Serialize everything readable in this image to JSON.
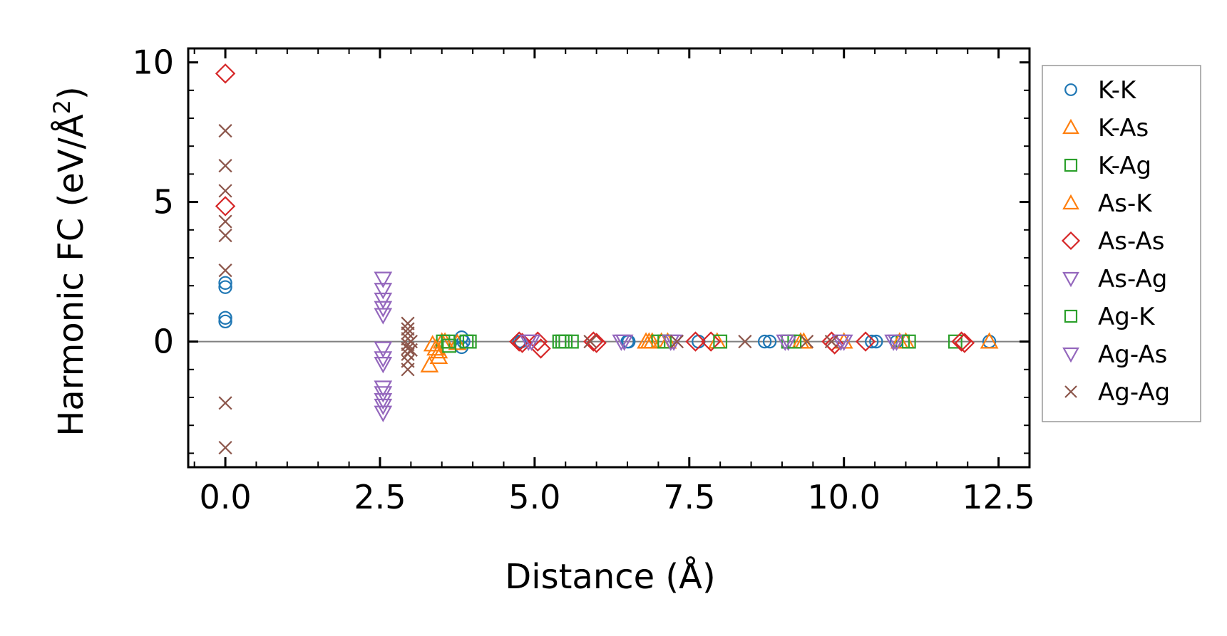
{
  "chart_data": {
    "type": "scatter",
    "title": "",
    "xlabel": "Distance (Å)",
    "ylabel_main": "Harmonic FC (eV/Å",
    "ylabel_sup": "2",
    "ylabel_close": ")",
    "xlim": [
      -0.6,
      13.0
    ],
    "ylim": [
      -4.5,
      10.5
    ],
    "xticks": [
      0.0,
      2.5,
      5.0,
      7.5,
      10.0,
      12.5
    ],
    "xtick_labels": [
      "0.0",
      "2.5",
      "5.0",
      "7.5",
      "10.0",
      "12.5"
    ],
    "yticks": [
      0,
      5,
      10
    ],
    "ytick_labels": [
      "0",
      "5",
      "10"
    ],
    "zero_line": true,
    "legend_position": "outside-right",
    "series": [
      {
        "name": "K-K",
        "marker": "circle",
        "color": "#1f77b4",
        "points": [
          [
            0.0,
            2.1
          ],
          [
            0.0,
            1.95
          ],
          [
            0.0,
            0.85
          ],
          [
            0.0,
            0.72
          ],
          [
            3.82,
            0.15
          ],
          [
            3.82,
            -0.2
          ],
          [
            3.85,
            0.0
          ],
          [
            4.75,
            0.0
          ],
          [
            4.78,
            0.0
          ],
          [
            6.5,
            0.0
          ],
          [
            6.52,
            0.0
          ],
          [
            7.65,
            0.0
          ],
          [
            8.72,
            0.0
          ],
          [
            8.8,
            0.0
          ],
          [
            10.45,
            0.0
          ],
          [
            10.52,
            0.0
          ],
          [
            10.85,
            0.0
          ],
          [
            12.35,
            0.0
          ]
        ]
      },
      {
        "name": "K-As",
        "marker": "triangle-up",
        "color": "#ff7f0e",
        "points": [
          [
            3.3,
            -0.85
          ],
          [
            3.35,
            -0.1
          ],
          [
            3.45,
            -0.55
          ],
          [
            3.45,
            -0.35
          ],
          [
            3.5,
            0.0
          ],
          [
            3.75,
            -0.05
          ],
          [
            6.85,
            0.0
          ],
          [
            6.9,
            0.0
          ],
          [
            7.15,
            0.0
          ],
          [
            9.35,
            0.0
          ],
          [
            11.0,
            0.0
          ],
          [
            12.35,
            0.0
          ]
        ]
      },
      {
        "name": "K-Ag",
        "marker": "square",
        "color": "#2ca02c",
        "points": [
          [
            3.52,
            0.0
          ],
          [
            3.95,
            0.0
          ],
          [
            5.45,
            0.0
          ],
          [
            5.5,
            0.0
          ],
          [
            7.0,
            0.0
          ],
          [
            9.1,
            0.0
          ],
          [
            10.95,
            0.0
          ],
          [
            11.8,
            0.0
          ]
        ]
      },
      {
        "name": "As-K",
        "marker": "triangle-up",
        "color": "#ff7f0e",
        "points": [
          [
            3.4,
            -0.25
          ],
          [
            3.55,
            0.0
          ],
          [
            6.8,
            0.0
          ],
          [
            7.05,
            0.0
          ],
          [
            7.95,
            0.0
          ],
          [
            9.3,
            0.0
          ],
          [
            10.0,
            0.0
          ],
          [
            10.9,
            0.0
          ]
        ]
      },
      {
        "name": "As-As",
        "marker": "diamond",
        "color": "#d62728",
        "points": [
          [
            0.0,
            9.6
          ],
          [
            0.0,
            4.85
          ],
          [
            4.75,
            0.0
          ],
          [
            4.8,
            -0.05
          ],
          [
            5.05,
            0.0
          ],
          [
            5.1,
            -0.25
          ],
          [
            5.95,
            0.0
          ],
          [
            6.0,
            -0.05
          ],
          [
            7.6,
            0.0
          ],
          [
            7.85,
            0.0
          ],
          [
            9.8,
            0.0
          ],
          [
            9.85,
            -0.1
          ],
          [
            10.35,
            0.0
          ],
          [
            11.9,
            0.0
          ],
          [
            11.95,
            -0.05
          ]
        ]
      },
      {
        "name": "As-Ag",
        "marker": "triangle-down",
        "color": "#9467bd",
        "points": [
          [
            2.55,
            2.25
          ],
          [
            2.55,
            1.85
          ],
          [
            2.55,
            1.5
          ],
          [
            2.55,
            1.2
          ],
          [
            2.55,
            0.95
          ],
          [
            2.55,
            -0.25
          ],
          [
            2.55,
            -0.6
          ],
          [
            2.55,
            -0.8
          ],
          [
            2.55,
            -1.65
          ],
          [
            2.55,
            -1.85
          ],
          [
            2.55,
            -2.1
          ],
          [
            2.55,
            -2.3
          ],
          [
            2.55,
            -2.55
          ],
          [
            4.9,
            0.0
          ],
          [
            6.45,
            0.0
          ],
          [
            7.25,
            0.0
          ],
          [
            9.1,
            0.0
          ],
          [
            10.0,
            0.0
          ],
          [
            10.85,
            0.0
          ]
        ]
      },
      {
        "name": "Ag-K",
        "marker": "square",
        "color": "#2ca02c",
        "points": [
          [
            3.6,
            0.0
          ],
          [
            3.62,
            -0.15
          ],
          [
            3.9,
            0.0
          ],
          [
            5.4,
            0.0
          ],
          [
            5.6,
            0.0
          ],
          [
            7.1,
            0.0
          ],
          [
            8.0,
            0.0
          ],
          [
            9.2,
            0.0
          ],
          [
            11.05,
            0.0
          ]
        ]
      },
      {
        "name": "Ag-As",
        "marker": "triangle-down",
        "color": "#9467bd",
        "points": [
          [
            4.95,
            0.0
          ],
          [
            6.4,
            0.0
          ],
          [
            7.2,
            0.0
          ],
          [
            9.05,
            0.0
          ],
          [
            9.95,
            0.0
          ],
          [
            10.8,
            0.0
          ]
        ]
      },
      {
        "name": "Ag-Ag",
        "marker": "x",
        "color": "#8c564b",
        "points": [
          [
            0.0,
            7.55
          ],
          [
            0.0,
            6.3
          ],
          [
            0.0,
            5.4
          ],
          [
            0.0,
            4.3
          ],
          [
            0.0,
            3.8
          ],
          [
            0.0,
            2.55
          ],
          [
            0.0,
            -2.2
          ],
          [
            0.0,
            -3.8
          ],
          [
            2.95,
            0.65
          ],
          [
            2.95,
            0.45
          ],
          [
            2.95,
            0.3
          ],
          [
            2.95,
            0.1
          ],
          [
            2.95,
            -0.1
          ],
          [
            2.95,
            -0.25
          ],
          [
            2.95,
            -0.45
          ],
          [
            2.95,
            -0.7
          ],
          [
            2.95,
            -1.0
          ],
          [
            3.0,
            0.0
          ],
          [
            3.0,
            -0.3
          ],
          [
            5.9,
            0.0
          ],
          [
            7.3,
            0.0
          ],
          [
            8.4,
            0.0
          ],
          [
            9.4,
            0.0
          ],
          [
            9.8,
            0.0
          ]
        ]
      }
    ]
  }
}
